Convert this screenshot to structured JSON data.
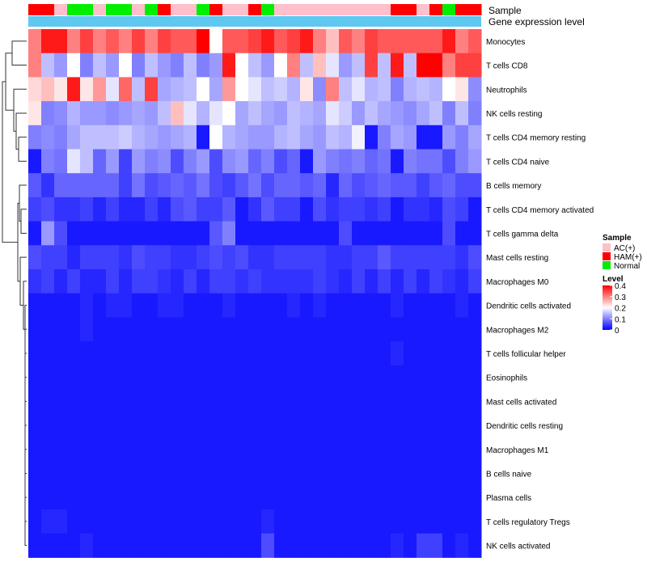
{
  "chart_data": {
    "type": "heatmap",
    "title": "",
    "annotation_titles": [
      "Sample",
      "Gene expression level"
    ],
    "rows": [
      "Monocytes",
      "T cells CD8",
      "Neutrophils",
      "NK cells resting",
      "T cells CD4 memory resting",
      "T cells CD4 naive",
      "B cells memory",
      "T cells CD4 memory activated",
      "T cells gamma delta",
      "Mast cells resting",
      "Macrophages M0",
      "Dendritic cells activated",
      "Macrophages M2",
      "T cells follicular helper",
      "Eosinophils",
      "Mast cells activated",
      "Dendritic cells resting",
      "Macrophages M1",
      "B cells naive",
      "Plasma cells",
      "T cells regulatory  Tregs",
      "NK cells activated"
    ],
    "sample_groups": [
      "HAM(+)",
      "HAM(+)",
      "AC(+)",
      "Normal",
      "Normal",
      "AC(+)",
      "Normal",
      "Normal",
      "AC(+)",
      "Normal",
      "HAM(+)",
      "AC(+)",
      "AC(+)",
      "Normal",
      "HAM(+)",
      "AC(+)",
      "AC(+)",
      "HAM(+)",
      "Normal",
      "AC(+)",
      "AC(+)",
      "AC(+)",
      "AC(+)",
      "AC(+)",
      "AC(+)",
      "AC(+)",
      "AC(+)",
      "AC(+)",
      "HAM(+)",
      "HAM(+)",
      "AC(+)",
      "HAM(+)",
      "Normal",
      "HAM(+)",
      "HAM(+)"
    ],
    "values": [
      [
        0.3,
        0.38,
        0.38,
        0.3,
        0.35,
        0.3,
        0.33,
        0.3,
        0.35,
        0.3,
        0.35,
        0.33,
        0.33,
        0.4,
        0.2,
        0.33,
        0.33,
        0.35,
        0.38,
        0.33,
        0.35,
        0.38,
        0.3,
        0.25,
        0.33,
        0.3,
        0.35,
        0.33,
        0.33,
        0.33,
        0.33,
        0.33,
        0.38,
        0.3,
        0.33
      ],
      [
        0.3,
        0.15,
        0.12,
        0.2,
        0.1,
        0.15,
        0.12,
        0.2,
        0.1,
        0.15,
        0.12,
        0.1,
        0.15,
        0.1,
        0.12,
        0.38,
        0.2,
        0.15,
        0.12,
        0.2,
        0.3,
        0.15,
        0.25,
        0.18,
        0.12,
        0.15,
        0.35,
        0.15,
        0.38,
        0.15,
        0.4,
        0.4,
        0.3,
        0.35,
        0.35
      ],
      [
        0.23,
        0.25,
        0.22,
        0.38,
        0.22,
        0.28,
        0.18,
        0.32,
        0.15,
        0.35,
        0.13,
        0.14,
        0.15,
        0.2,
        0.13,
        0.28,
        0.2,
        0.18,
        0.15,
        0.16,
        0.14,
        0.22,
        0.11,
        0.3,
        0.15,
        0.18,
        0.14,
        0.15,
        0.1,
        0.14,
        0.15,
        0.14,
        0.2,
        0.22,
        0.11
      ],
      [
        0.22,
        0.1,
        0.11,
        0.14,
        0.12,
        0.12,
        0.11,
        0.12,
        0.13,
        0.12,
        0.15,
        0.25,
        0.18,
        0.14,
        0.18,
        0.2,
        0.13,
        0.15,
        0.13,
        0.12,
        0.15,
        0.14,
        0.13,
        0.18,
        0.16,
        0.12,
        0.15,
        0.13,
        0.12,
        0.11,
        0.13,
        0.15,
        0.1,
        0.15,
        0.1
      ],
      [
        0.1,
        0.11,
        0.1,
        0.13,
        0.15,
        0.15,
        0.15,
        0.16,
        0.14,
        0.13,
        0.12,
        0.13,
        0.14,
        0.02,
        0.2,
        0.14,
        0.13,
        0.12,
        0.12,
        0.14,
        0.15,
        0.13,
        0.12,
        0.15,
        0.14,
        0.19,
        0.02,
        0.1,
        0.13,
        0.12,
        0.02,
        0.02,
        0.12,
        0.1,
        0.13
      ],
      [
        0.02,
        0.1,
        0.09,
        0.18,
        0.15,
        0.08,
        0.12,
        0.05,
        0.12,
        0.1,
        0.11,
        0.06,
        0.1,
        0.12,
        0.06,
        0.11,
        0.12,
        0.08,
        0.1,
        0.06,
        0.08,
        0.02,
        0.12,
        0.1,
        0.09,
        0.1,
        0.08,
        0.09,
        0.02,
        0.1,
        0.09,
        0.09,
        0.06,
        0.1,
        0.12
      ],
      [
        0.07,
        0.04,
        0.08,
        0.08,
        0.08,
        0.08,
        0.08,
        0.05,
        0.09,
        0.06,
        0.07,
        0.08,
        0.07,
        0.09,
        0.06,
        0.05,
        0.07,
        0.09,
        0.06,
        0.08,
        0.08,
        0.07,
        0.08,
        0.03,
        0.08,
        0.06,
        0.07,
        0.08,
        0.07,
        0.07,
        0.05,
        0.07,
        0.08,
        0.06,
        0.06
      ],
      [
        0.05,
        0.06,
        0.04,
        0.04,
        0.05,
        0.03,
        0.05,
        0.03,
        0.03,
        0.05,
        0.03,
        0.06,
        0.07,
        0.05,
        0.05,
        0.07,
        0.02,
        0.04,
        0.07,
        0.05,
        0.05,
        0.02,
        0.06,
        0.04,
        0.05,
        0.05,
        0.04,
        0.05,
        0.02,
        0.04,
        0.04,
        0.03,
        0.06,
        0.05,
        0.02
      ],
      [
        0.02,
        0.12,
        0.06,
        0.02,
        0.02,
        0.02,
        0.02,
        0.02,
        0.02,
        0.02,
        0.02,
        0.02,
        0.02,
        0.02,
        0.07,
        0.1,
        0.02,
        0.02,
        0.02,
        0.02,
        0.02,
        0.02,
        0.02,
        0.02,
        0.06,
        0.02,
        0.02,
        0.02,
        0.02,
        0.02,
        0.02,
        0.02,
        0.06,
        0.02,
        0.02
      ],
      [
        0.06,
        0.05,
        0.05,
        0.03,
        0.05,
        0.05,
        0.05,
        0.04,
        0.06,
        0.05,
        0.05,
        0.04,
        0.04,
        0.05,
        0.06,
        0.05,
        0.06,
        0.04,
        0.04,
        0.05,
        0.05,
        0.05,
        0.05,
        0.04,
        0.04,
        0.05,
        0.05,
        0.07,
        0.05,
        0.05,
        0.05,
        0.05,
        0.05,
        0.04,
        0.06
      ],
      [
        0.04,
        0.05,
        0.03,
        0.05,
        0.03,
        0.03,
        0.05,
        0.03,
        0.05,
        0.05,
        0.04,
        0.03,
        0.05,
        0.03,
        0.05,
        0.05,
        0.04,
        0.05,
        0.04,
        0.04,
        0.04,
        0.04,
        0.05,
        0.04,
        0.03,
        0.05,
        0.03,
        0.05,
        0.03,
        0.05,
        0.03,
        0.05,
        0.04,
        0.03,
        0.05
      ],
      [
        0.02,
        0.02,
        0.02,
        0.02,
        0.03,
        0.02,
        0.03,
        0.03,
        0.02,
        0.02,
        0.03,
        0.03,
        0.02,
        0.02,
        0.02,
        0.03,
        0.02,
        0.02,
        0.02,
        0.02,
        0.03,
        0.02,
        0.03,
        0.02,
        0.02,
        0.02,
        0.02,
        0.02,
        0.03,
        0.02,
        0.02,
        0.02,
        0.02,
        0.03,
        0.02
      ],
      [
        0.02,
        0.02,
        0.02,
        0.02,
        0.03,
        0.02,
        0.02,
        0.02,
        0.02,
        0.02,
        0.02,
        0.02,
        0.02,
        0.02,
        0.02,
        0.02,
        0.02,
        0.02,
        0.02,
        0.02,
        0.02,
        0.02,
        0.02,
        0.02,
        0.02,
        0.02,
        0.02,
        0.02,
        0.02,
        0.02,
        0.02,
        0.02,
        0.02,
        0.02,
        0.02
      ],
      [
        0.02,
        0.02,
        0.02,
        0.02,
        0.02,
        0.02,
        0.02,
        0.02,
        0.02,
        0.02,
        0.02,
        0.02,
        0.02,
        0.02,
        0.02,
        0.02,
        0.02,
        0.02,
        0.02,
        0.02,
        0.02,
        0.02,
        0.02,
        0.02,
        0.02,
        0.02,
        0.02,
        0.02,
        0.03,
        0.02,
        0.02,
        0.02,
        0.02,
        0.02,
        0.02
      ],
      [
        0.02,
        0.02,
        0.02,
        0.02,
        0.02,
        0.02,
        0.02,
        0.02,
        0.02,
        0.02,
        0.02,
        0.02,
        0.02,
        0.02,
        0.02,
        0.02,
        0.02,
        0.02,
        0.02,
        0.02,
        0.02,
        0.02,
        0.02,
        0.02,
        0.02,
        0.02,
        0.02,
        0.02,
        0.02,
        0.02,
        0.02,
        0.02,
        0.02,
        0.02,
        0.02
      ],
      [
        0.02,
        0.02,
        0.02,
        0.02,
        0.02,
        0.02,
        0.02,
        0.02,
        0.02,
        0.02,
        0.02,
        0.02,
        0.02,
        0.02,
        0.02,
        0.02,
        0.02,
        0.02,
        0.02,
        0.02,
        0.02,
        0.02,
        0.02,
        0.02,
        0.02,
        0.02,
        0.02,
        0.02,
        0.02,
        0.02,
        0.02,
        0.02,
        0.02,
        0.02,
        0.02
      ],
      [
        0.02,
        0.02,
        0.02,
        0.02,
        0.02,
        0.02,
        0.02,
        0.02,
        0.02,
        0.02,
        0.02,
        0.02,
        0.02,
        0.02,
        0.02,
        0.02,
        0.02,
        0.02,
        0.02,
        0.02,
        0.02,
        0.02,
        0.02,
        0.02,
        0.02,
        0.02,
        0.02,
        0.02,
        0.02,
        0.02,
        0.02,
        0.02,
        0.02,
        0.02,
        0.02
      ],
      [
        0.02,
        0.02,
        0.02,
        0.02,
        0.02,
        0.02,
        0.02,
        0.02,
        0.02,
        0.02,
        0.02,
        0.02,
        0.02,
        0.02,
        0.02,
        0.02,
        0.02,
        0.02,
        0.02,
        0.02,
        0.02,
        0.02,
        0.02,
        0.02,
        0.02,
        0.02,
        0.02,
        0.02,
        0.02,
        0.02,
        0.02,
        0.02,
        0.02,
        0.02,
        0.02
      ],
      [
        0.02,
        0.02,
        0.02,
        0.02,
        0.02,
        0.02,
        0.02,
        0.02,
        0.02,
        0.02,
        0.02,
        0.02,
        0.02,
        0.02,
        0.02,
        0.02,
        0.02,
        0.02,
        0.02,
        0.02,
        0.02,
        0.02,
        0.02,
        0.02,
        0.02,
        0.02,
        0.02,
        0.02,
        0.02,
        0.02,
        0.02,
        0.02,
        0.02,
        0.02,
        0.02
      ],
      [
        0.02,
        0.02,
        0.02,
        0.02,
        0.02,
        0.02,
        0.02,
        0.02,
        0.02,
        0.02,
        0.02,
        0.02,
        0.02,
        0.02,
        0.02,
        0.02,
        0.02,
        0.02,
        0.02,
        0.02,
        0.02,
        0.02,
        0.02,
        0.02,
        0.02,
        0.02,
        0.02,
        0.02,
        0.02,
        0.02,
        0.02,
        0.02,
        0.02,
        0.02,
        0.02
      ],
      [
        0.02,
        0.03,
        0.03,
        0.02,
        0.02,
        0.02,
        0.02,
        0.02,
        0.02,
        0.02,
        0.02,
        0.02,
        0.02,
        0.02,
        0.02,
        0.02,
        0.02,
        0.02,
        0.03,
        0.02,
        0.02,
        0.02,
        0.02,
        0.02,
        0.02,
        0.02,
        0.02,
        0.02,
        0.02,
        0.02,
        0.02,
        0.02,
        0.02,
        0.02,
        0.02
      ],
      [
        0.02,
        0.02,
        0.02,
        0.02,
        0.03,
        0.02,
        0.02,
        0.02,
        0.02,
        0.02,
        0.02,
        0.02,
        0.02,
        0.02,
        0.02,
        0.02,
        0.02,
        0.02,
        0.06,
        0.02,
        0.02,
        0.02,
        0.02,
        0.02,
        0.02,
        0.02,
        0.02,
        0.02,
        0.03,
        0.02,
        0.05,
        0.05,
        0.02,
        0.03,
        0.02
      ]
    ],
    "legends": {
      "sample": {
        "title": "Sample",
        "items": [
          {
            "label": "AC(+)",
            "color": "#ffc0cb"
          },
          {
            "label": "HAM(+)",
            "color": "#ff0000"
          },
          {
            "label": "Normal",
            "color": "#00ee00"
          }
        ]
      },
      "level": {
        "title": "Level",
        "min": 0,
        "max": 0.4,
        "ticks": [
          "0.4",
          "0.3",
          "0.2",
          "0.1",
          "0"
        ],
        "colors": {
          "low": "#0000ff",
          "mid": "#ffffff",
          "high": "#ff0000"
        }
      }
    },
    "expression_bar_color": "#5ec8f0"
  }
}
